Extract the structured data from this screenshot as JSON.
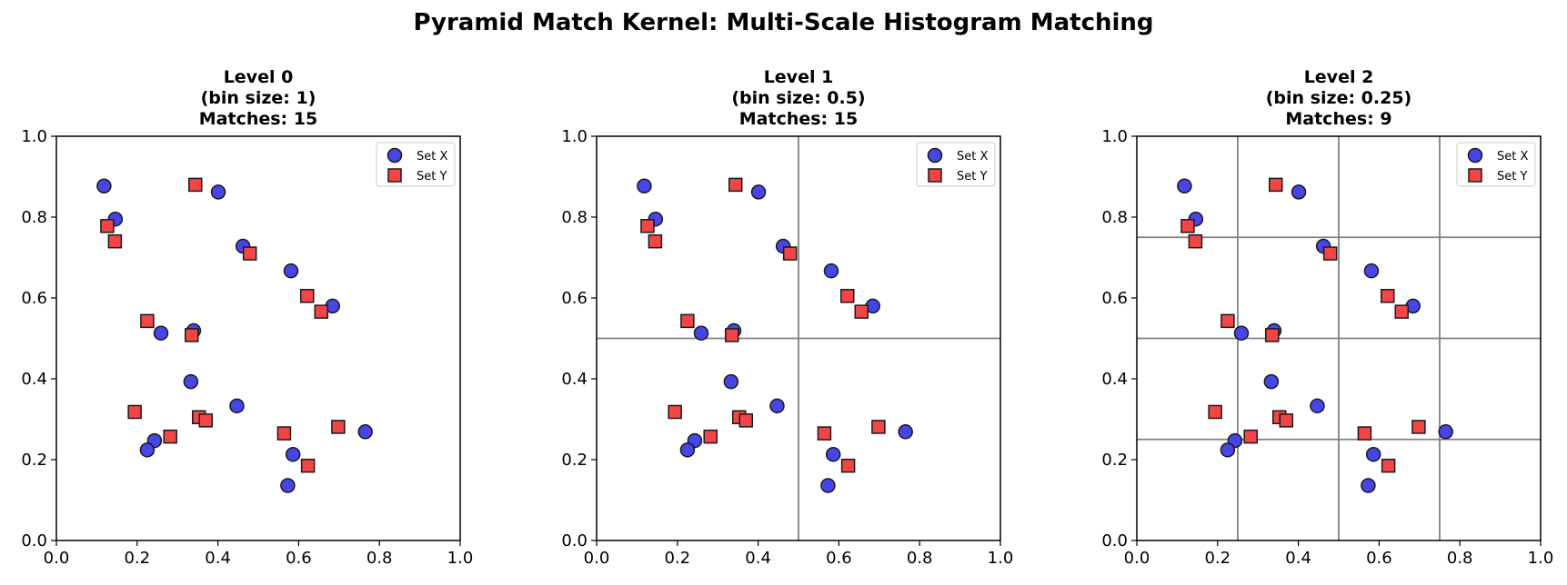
{
  "figure": {
    "title": "Pyramid Match Kernel: Multi-Scale Histogram Matching"
  },
  "colors": {
    "set_x_fill": "#4646e6",
    "set_y_fill": "#f24646",
    "marker_edge": "#1a1a1a",
    "grid_line": "#808080",
    "axis": "#000000"
  },
  "chart_data": [
    {
      "type": "scatter",
      "title_lines": [
        "Level 0",
        "(bin size: 1)",
        "Matches: 15"
      ],
      "level": 0,
      "bin_size": 1,
      "matches": 15,
      "xlim": [
        0,
        1
      ],
      "ylim": [
        0,
        1
      ],
      "xticks": [
        "0.0",
        "0.2",
        "0.4",
        "0.6",
        "0.8",
        "1.0"
      ],
      "yticks": [
        "0.0",
        "0.2",
        "0.4",
        "0.6",
        "0.8",
        "1.0"
      ],
      "legend_position": "upper-right",
      "series": [
        {
          "name": "Set X",
          "marker": "circle",
          "x": [
            0.118,
            0.146,
            0.401,
            0.462,
            0.581,
            0.684,
            0.259,
            0.34,
            0.333,
            0.447,
            0.243,
            0.225,
            0.586,
            0.573,
            0.765
          ],
          "y": [
            0.877,
            0.795,
            0.862,
            0.728,
            0.667,
            0.58,
            0.513,
            0.519,
            0.393,
            0.333,
            0.247,
            0.224,
            0.213,
            0.136,
            0.269
          ]
        },
        {
          "name": "Set Y",
          "marker": "square",
          "x": [
            0.126,
            0.145,
            0.344,
            0.479,
            0.621,
            0.656,
            0.225,
            0.335,
            0.194,
            0.353,
            0.37,
            0.282,
            0.564,
            0.623,
            0.698
          ],
          "y": [
            0.778,
            0.74,
            0.88,
            0.71,
            0.605,
            0.566,
            0.543,
            0.508,
            0.318,
            0.305,
            0.297,
            0.257,
            0.265,
            0.185,
            0.281
          ]
        }
      ]
    },
    {
      "type": "scatter",
      "title_lines": [
        "Level 1",
        "(bin size: 0.5)",
        "Matches: 15"
      ],
      "level": 1,
      "bin_size": 0.5,
      "matches": 15,
      "xlim": [
        0,
        1
      ],
      "ylim": [
        0,
        1
      ],
      "xticks": [
        "0.0",
        "0.2",
        "0.4",
        "0.6",
        "0.8",
        "1.0"
      ],
      "yticks": [
        "0.0",
        "0.2",
        "0.4",
        "0.6",
        "0.8",
        "1.0"
      ],
      "legend_position": "upper-right",
      "series": [
        {
          "name": "Set X",
          "marker": "circle",
          "x": [
            0.118,
            0.146,
            0.401,
            0.462,
            0.581,
            0.684,
            0.259,
            0.34,
            0.333,
            0.447,
            0.243,
            0.225,
            0.586,
            0.573,
            0.765
          ],
          "y": [
            0.877,
            0.795,
            0.862,
            0.728,
            0.667,
            0.58,
            0.513,
            0.519,
            0.393,
            0.333,
            0.247,
            0.224,
            0.213,
            0.136,
            0.269
          ]
        },
        {
          "name": "Set Y",
          "marker": "square",
          "x": [
            0.126,
            0.145,
            0.344,
            0.479,
            0.621,
            0.656,
            0.225,
            0.335,
            0.194,
            0.353,
            0.37,
            0.282,
            0.564,
            0.623,
            0.698
          ],
          "y": [
            0.778,
            0.74,
            0.88,
            0.71,
            0.605,
            0.566,
            0.543,
            0.508,
            0.318,
            0.305,
            0.297,
            0.257,
            0.265,
            0.185,
            0.281
          ]
        }
      ]
    },
    {
      "type": "scatter",
      "title_lines": [
        "Level 2",
        "(bin size: 0.25)",
        "Matches: 9"
      ],
      "level": 2,
      "bin_size": 0.25,
      "matches": 9,
      "xlim": [
        0,
        1
      ],
      "ylim": [
        0,
        1
      ],
      "xticks": [
        "0.0",
        "0.2",
        "0.4",
        "0.6",
        "0.8",
        "1.0"
      ],
      "yticks": [
        "0.0",
        "0.2",
        "0.4",
        "0.6",
        "0.8",
        "1.0"
      ],
      "legend_position": "upper-right",
      "series": [
        {
          "name": "Set X",
          "marker": "circle",
          "x": [
            0.118,
            0.146,
            0.401,
            0.462,
            0.581,
            0.684,
            0.259,
            0.34,
            0.333,
            0.447,
            0.243,
            0.225,
            0.586,
            0.573,
            0.765
          ],
          "y": [
            0.877,
            0.795,
            0.862,
            0.728,
            0.667,
            0.58,
            0.513,
            0.519,
            0.393,
            0.333,
            0.247,
            0.224,
            0.213,
            0.136,
            0.269
          ]
        },
        {
          "name": "Set Y",
          "marker": "square",
          "x": [
            0.126,
            0.145,
            0.344,
            0.479,
            0.621,
            0.656,
            0.225,
            0.335,
            0.194,
            0.353,
            0.37,
            0.282,
            0.564,
            0.623,
            0.698
          ],
          "y": [
            0.778,
            0.74,
            0.88,
            0.71,
            0.605,
            0.566,
            0.543,
            0.508,
            0.318,
            0.305,
            0.297,
            0.257,
            0.265,
            0.185,
            0.281
          ]
        }
      ]
    }
  ]
}
